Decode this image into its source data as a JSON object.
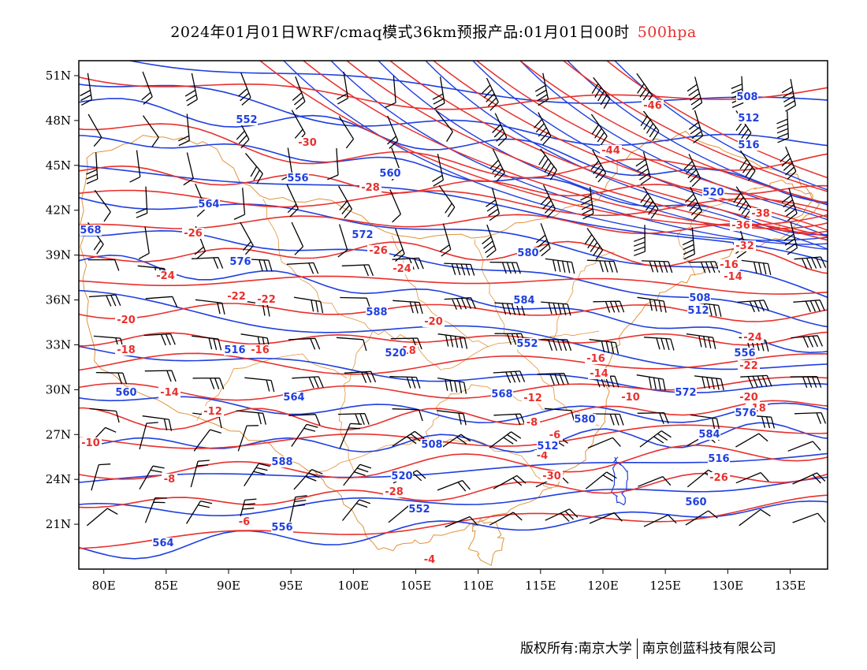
{
  "title": {
    "main": "2024年01月01日WRF/cmaq模式36km预报产品:01月01日00时",
    "level": "500hpa"
  },
  "map": {
    "lon_range": [
      78,
      138
    ],
    "lat_range": [
      18,
      52
    ],
    "x_ticks": [
      "80E",
      "85E",
      "90E",
      "95E",
      "100E",
      "105E",
      "110E",
      "115E",
      "120E",
      "125E",
      "130E",
      "135E"
    ],
    "x_tick_values": [
      80,
      85,
      90,
      95,
      100,
      105,
      110,
      115,
      120,
      125,
      130,
      135
    ],
    "y_ticks": [
      "51N",
      "48N",
      "45N",
      "42N",
      "39N",
      "36N",
      "33N",
      "30N",
      "27N",
      "24N",
      "21N"
    ],
    "y_tick_values": [
      51,
      48,
      45,
      42,
      39,
      36,
      33,
      30,
      27,
      24,
      21
    ],
    "colors": {
      "temperature": "#e8302d",
      "height": "#1f3fe0",
      "boundary": "#e0923a",
      "wind": "#000000"
    },
    "temperature_labels": [
      "-30",
      "-28",
      "-26",
      "-24",
      "-22",
      "-20",
      "-18",
      "-16",
      "-14",
      "-12",
      "-10",
      "-8",
      "-6",
      "-4",
      "-38",
      "-36",
      "-32",
      "-44",
      "-46"
    ],
    "height_labels": [
      "508",
      "512",
      "516",
      "520",
      "552",
      "556",
      "560",
      "564",
      "568",
      "572",
      "576",
      "580",
      "584",
      "588"
    ]
  },
  "footer": {
    "left": "版权所有:南京大学",
    "right": "南京创蓝科技有限公司"
  }
}
